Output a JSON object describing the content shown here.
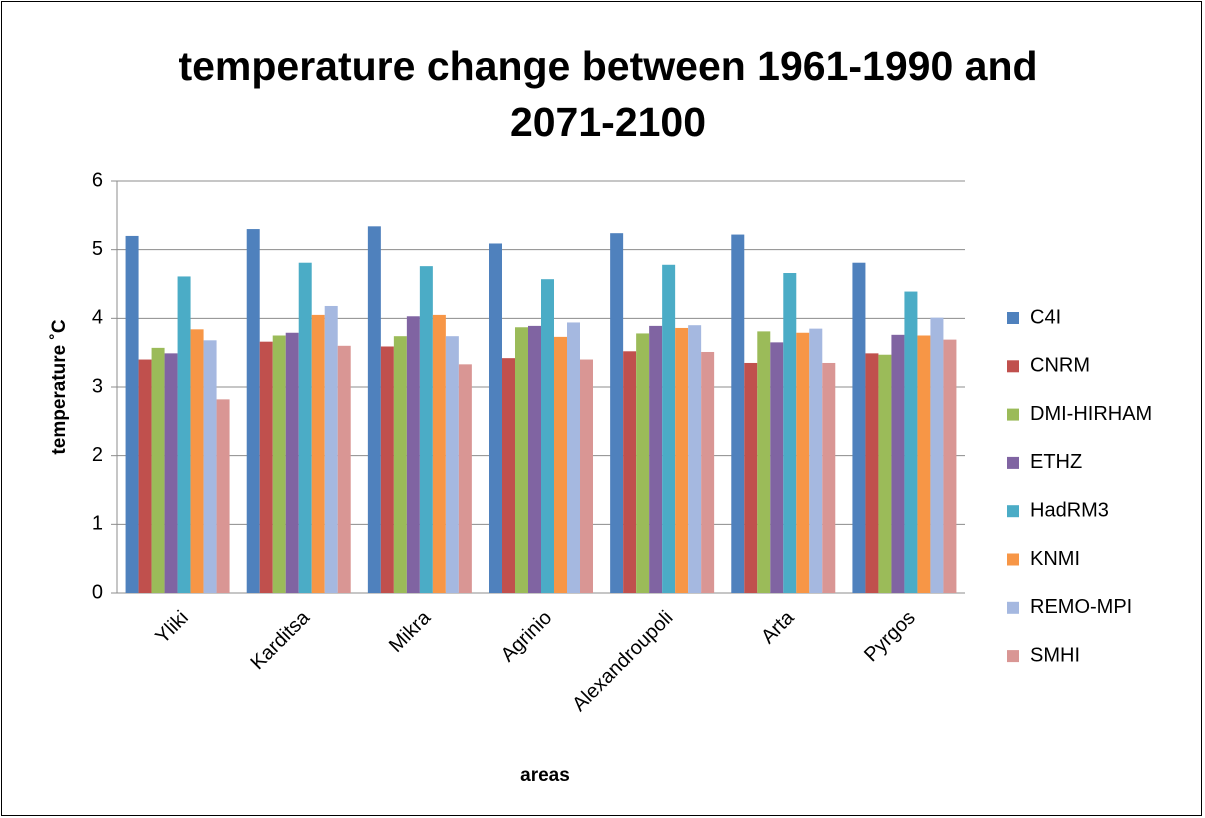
{
  "chart_data": {
    "type": "bar",
    "title": "temperature change between 1961-1990 and 2071-2100",
    "x_label": "areas",
    "y_label": "temperature ˚C",
    "categories": [
      "Yliki",
      "Karditsa",
      "Mikra",
      "Agrinio",
      "Alexandroupoli",
      "Arta",
      "Pyrgos"
    ],
    "series": [
      {
        "name": "C4I",
        "color": "#4F81BD",
        "values": [
          5.2,
          5.3,
          5.34,
          5.09,
          5.24,
          5.22,
          4.81
        ]
      },
      {
        "name": "CNRM",
        "color": "#C0504D",
        "values": [
          3.4,
          3.66,
          3.59,
          3.42,
          3.52,
          3.35,
          3.49
        ]
      },
      {
        "name": "DMI-HIRHAM",
        "color": "#9BBB59",
        "values": [
          3.57,
          3.75,
          3.74,
          3.87,
          3.78,
          3.81,
          3.47
        ]
      },
      {
        "name": "ETHZ",
        "color": "#8064A2",
        "values": [
          3.49,
          3.79,
          4.03,
          3.89,
          3.89,
          3.65,
          3.76
        ]
      },
      {
        "name": "HadRM3",
        "color": "#4BACC6",
        "values": [
          4.61,
          4.81,
          4.76,
          4.57,
          4.78,
          4.66,
          4.39
        ]
      },
      {
        "name": "KNMI",
        "color": "#F79646",
        "values": [
          3.84,
          4.05,
          4.05,
          3.73,
          3.86,
          3.79,
          3.75
        ]
      },
      {
        "name": "REMO-MPI",
        "color": "#A5B8E0",
        "values": [
          3.68,
          4.18,
          3.74,
          3.94,
          3.9,
          3.85,
          4.01
        ]
      },
      {
        "name": "SMHI",
        "color": "#D99694",
        "values": [
          2.82,
          3.6,
          3.33,
          3.4,
          3.51,
          3.35,
          3.69
        ]
      }
    ],
    "ylim": [
      0,
      6
    ],
    "yticks": [
      0,
      1,
      2,
      3,
      4,
      5,
      6
    ],
    "grid": true,
    "legend": "right"
  }
}
